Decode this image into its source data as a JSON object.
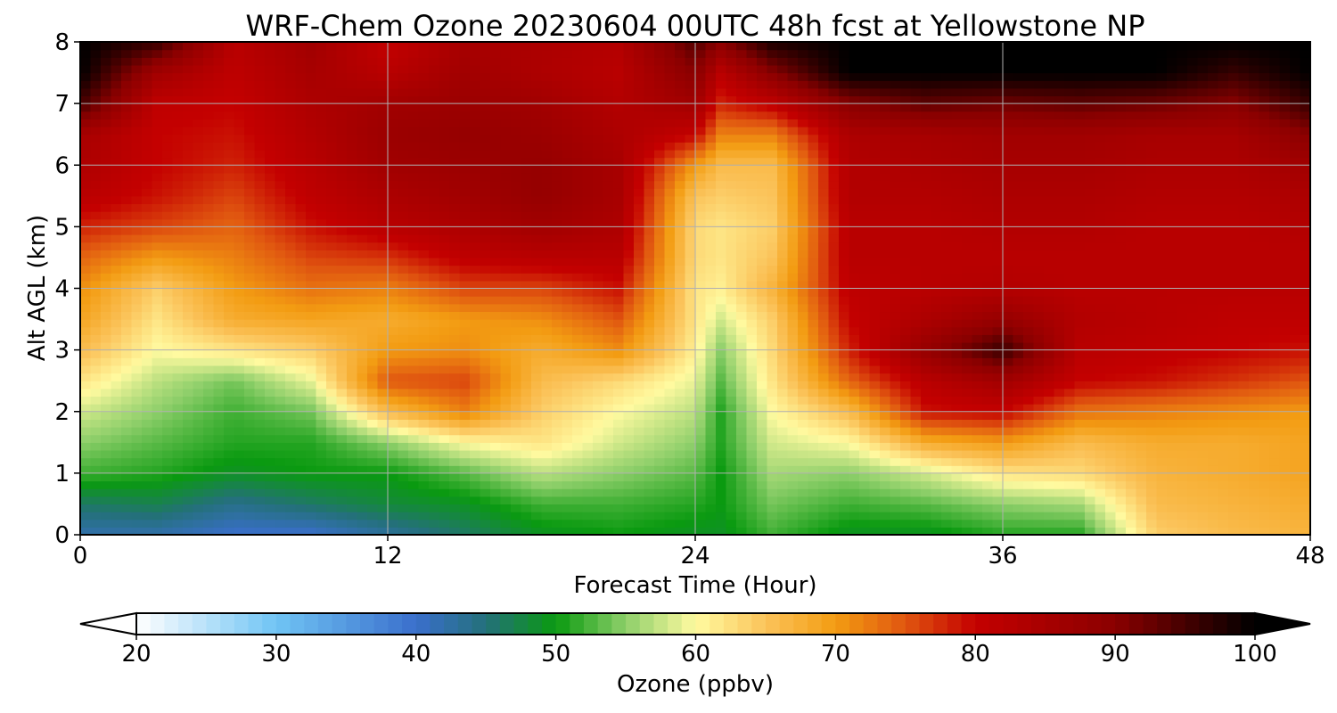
{
  "chart_data": {
    "type": "heatmap",
    "title": "WRF-Chem Ozone  20230604 00UTC 48h fcst at Yellowstone NP",
    "xlabel": "Forecast Time (Hour)",
    "ylabel": "Alt AGL (km)",
    "xlim": [
      0,
      48
    ],
    "ylim": [
      0,
      8
    ],
    "x_ticks": [
      "0",
      "12",
      "24",
      "36",
      "48"
    ],
    "y_ticks": [
      "0",
      "1",
      "2",
      "3",
      "4",
      "5",
      "6",
      "7",
      "8"
    ],
    "grid": true,
    "colorbar": {
      "label": "Ozone  (ppbv)",
      "range": [
        20,
        100
      ],
      "ticks": [
        "20",
        "30",
        "40",
        "50",
        "60",
        "70",
        "80",
        "90",
        "100"
      ],
      "extend": "both",
      "stops": [
        {
          "value": 20,
          "color": "#ffffff"
        },
        {
          "value": 30,
          "color": "#70c4f4"
        },
        {
          "value": 40,
          "color": "#3a6fcc"
        },
        {
          "value": 45,
          "color": "#24707a"
        },
        {
          "value": 50,
          "color": "#0a9a10"
        },
        {
          "value": 55,
          "color": "#8ecf6a"
        },
        {
          "value": 60,
          "color": "#fffaa0"
        },
        {
          "value": 65,
          "color": "#fbc35a"
        },
        {
          "value": 70,
          "color": "#f39c12"
        },
        {
          "value": 75,
          "color": "#e05610"
        },
        {
          "value": 80,
          "color": "#c40000"
        },
        {
          "value": 90,
          "color": "#8a0000"
        },
        {
          "value": 100,
          "color": "#000000"
        }
      ]
    },
    "profile_heights_km": [
      0,
      0.5,
      1,
      1.5,
      2,
      2.5,
      3,
      3.5,
      4,
      4.5,
      5,
      5.5,
      6,
      6.5,
      7,
      7.5,
      8
    ],
    "profiles": [
      {
        "x": 0,
        "ozone": [
          42,
          46,
          52,
          55,
          58,
          62,
          66,
          69,
          71,
          74,
          78,
          82,
          84,
          85,
          95,
          100,
          100
        ]
      },
      {
        "x": 3,
        "ozone": [
          42,
          47,
          51,
          53,
          55,
          57,
          60,
          62,
          64,
          70,
          76,
          79,
          80,
          80,
          81,
          86,
          96
        ]
      },
      {
        "x": 6,
        "ozone": [
          40,
          44,
          49,
          51,
          52,
          54,
          62,
          68,
          70,
          72,
          74,
          76,
          78,
          79,
          80,
          81,
          82
        ]
      },
      {
        "x": 9,
        "ozone": [
          40,
          46,
          50,
          51,
          54,
          59,
          64,
          69,
          73,
          76,
          79,
          81,
          82,
          83,
          84,
          85,
          86
        ]
      },
      {
        "x": 12,
        "ozone": [
          43,
          48,
          50,
          55,
          66,
          75,
          70,
          68,
          72,
          77,
          82,
          84,
          86,
          87,
          86,
          82,
          80
        ]
      },
      {
        "x": 15,
        "ozone": [
          46,
          49,
          53,
          60,
          72,
          76,
          71,
          70,
          76,
          81,
          84,
          86,
          87,
          88,
          87,
          86,
          85
        ]
      },
      {
        "x": 18,
        "ozone": [
          49,
          52,
          57,
          62,
          64,
          66,
          68,
          71,
          76,
          82,
          86,
          88,
          88,
          87,
          86,
          84,
          84
        ]
      },
      {
        "x": 21,
        "ozone": [
          50,
          52,
          55,
          58,
          60,
          63,
          71,
          75,
          79,
          82,
          84,
          85,
          85,
          84,
          83,
          82,
          83
        ]
      },
      {
        "x": 24,
        "ozone": [
          49,
          51,
          53,
          55,
          57,
          59,
          61,
          62,
          62,
          63,
          63,
          65,
          70,
          80,
          86,
          90,
          94
        ]
      },
      {
        "x": 25,
        "ozone": [
          49,
          50,
          50,
          51,
          51,
          53,
          55,
          58,
          61,
          62,
          62,
          64,
          66,
          72,
          78,
          82,
          90
        ]
      },
      {
        "x": 27,
        "ozone": [
          52,
          54,
          56,
          58,
          60,
          62,
          63,
          64,
          67,
          65,
          64,
          65,
          66,
          72,
          81,
          90,
          98
        ]
      },
      {
        "x": 30,
        "ozone": [
          49,
          52,
          55,
          60,
          66,
          74,
          78,
          80,
          81,
          82,
          82,
          83,
          83,
          84,
          90,
          100,
          100
        ]
      },
      {
        "x": 33,
        "ozone": [
          49,
          53,
          58,
          68,
          79,
          82,
          88,
          84,
          82,
          82,
          82,
          83,
          84,
          85,
          93,
          100,
          100
        ]
      },
      {
        "x": 36,
        "ozone": [
          51,
          55,
          62,
          70,
          80,
          86,
          96,
          88,
          83,
          82,
          83,
          84,
          85,
          86,
          92,
          100,
          100
        ]
      },
      {
        "x": 39,
        "ozone": [
          51,
          56,
          63,
          66,
          73,
          80,
          82,
          83,
          82,
          82,
          83,
          84,
          85,
          86,
          93,
          100,
          100
        ]
      },
      {
        "x": 42,
        "ozone": [
          64,
          66,
          67,
          68,
          72,
          79,
          81,
          82,
          82,
          82,
          82,
          83,
          84,
          85,
          92,
          100,
          100
        ]
      },
      {
        "x": 45,
        "ozone": [
          66,
          67,
          68,
          68,
          71,
          77,
          80,
          81,
          82,
          82,
          82,
          83,
          84,
          85,
          90,
          96,
          100
        ]
      },
      {
        "x": 48,
        "ozone": [
          67,
          68,
          69,
          69,
          70,
          75,
          79,
          81,
          82,
          82,
          83,
          84,
          86,
          90,
          96,
          100,
          100
        ]
      }
    ]
  }
}
